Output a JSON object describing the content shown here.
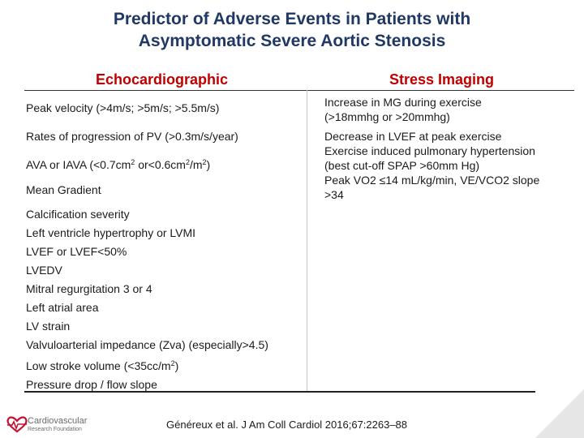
{
  "title": {
    "line1": "Predictor of Adverse Events in Patients with",
    "line2": "Asymptomatic Severe Aortic Stenosis"
  },
  "headers": {
    "left": "Echocardiographic",
    "right": "Stress Imaging"
  },
  "left_rows": {
    "peak_velocity": "Peak velocity (>4m/s; >5m/s; >5.5m/s)",
    "rates": "Rates of progression of PV (>0.3m/s/year)",
    "ava_prefix": "AVA or IAVA (<0.7cm",
    "ava_sup1": "2",
    "ava_mid": " or<0.6cm",
    "ava_sup2": "2",
    "ava_mid2": "/m",
    "ava_sup3": "2",
    "ava_suffix": ")",
    "mean_gradient": "Mean Gradient",
    "list": [
      "Calcification severity",
      "Left ventricle hypertrophy or LVMI",
      "LVEF or LVEF<50%",
      "LVEDV",
      "Mitral regurgitation 3 or 4",
      "Left atrial area",
      "LV strain",
      "Valvuloarterial impedance (Zva) (especially>4.5)"
    ],
    "stroke_prefix": "Low stroke volume (<35cc/m",
    "stroke_sup": "2",
    "stroke_suffix": ")",
    "pressure": "Pressure drop / flow slope"
  },
  "right_rows": {
    "mg_line1": "Increase in MG during exercise",
    "mg_line2": "(>18mmhg or >20mmhg)",
    "lines": [
      "Decrease in LVEF at peak exercise",
      "Exercise induced pulmonary hypertension",
      "(best cut-off SPAP >60mm Hg)",
      "Peak VO2 ≤14 mL/kg/min, VE/VCO2 slope",
      ">34"
    ]
  },
  "reference": "Généreux et al. J Am Coll Cardiol 2016;67:2263–88",
  "logo": {
    "name_line1": "Cardiovascular",
    "name_line2": "Research Foundation",
    "icon": "heart-logo-icon",
    "color": "#c8102e"
  }
}
